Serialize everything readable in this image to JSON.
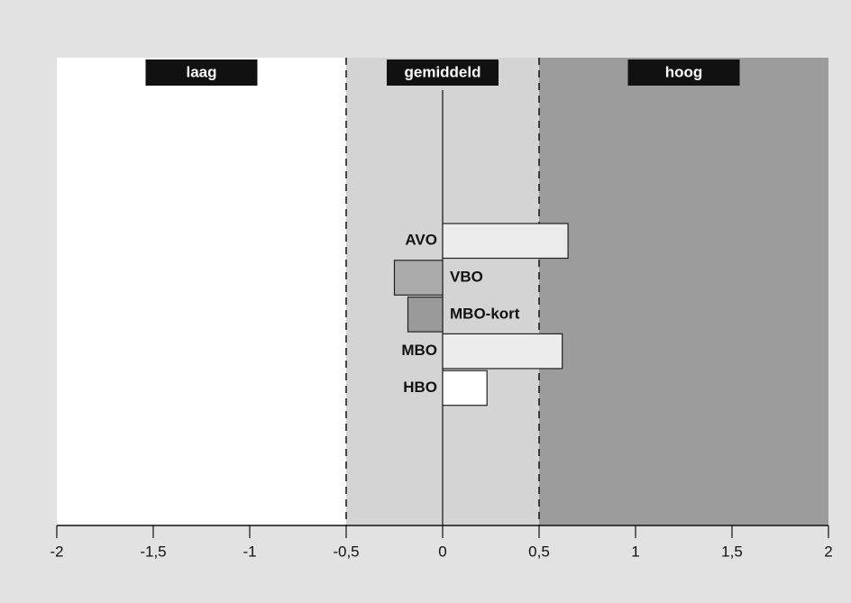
{
  "chart_data": {
    "type": "bar",
    "orientation": "horizontal",
    "categories": [
      "AVO",
      "VBO",
      "MBO-kort",
      "MBO",
      "HBO"
    ],
    "values": [
      0.65,
      -0.25,
      -0.18,
      0.62,
      0.23
    ],
    "colors": [
      "#ececec",
      "#ababab",
      "#9a9a9a",
      "#ececec",
      "#ffffff"
    ],
    "xlim": [
      -2,
      2
    ],
    "xticks": [
      -2,
      {
        "value": -1.5,
        "label": "-1,5"
      },
      -1,
      {
        "value": -0.5,
        "label": "-0,5"
      },
      0,
      {
        "value": 0.5,
        "label": "0,5"
      },
      1,
      {
        "value": 1.5,
        "label": "1,5"
      },
      2
    ],
    "bands": [
      {
        "label": "laag",
        "from": -2,
        "to": -0.5,
        "color": "#ffffff"
      },
      {
        "label": "gemiddeld",
        "from": -0.5,
        "to": 0.5,
        "color": "#d4d4d4"
      },
      {
        "label": "hoog",
        "from": 0.5,
        "to": 2,
        "color": "#9c9c9c"
      }
    ]
  }
}
